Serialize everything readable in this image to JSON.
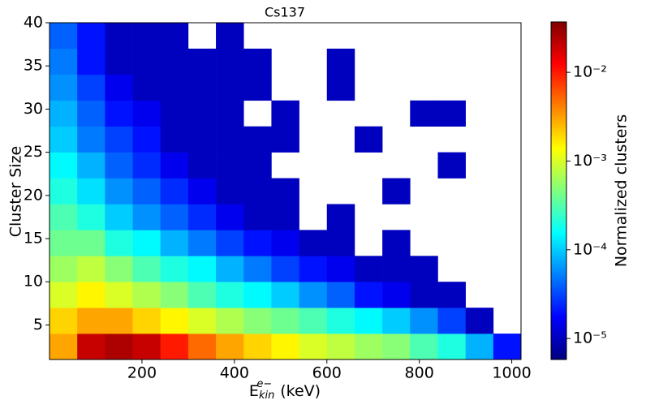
{
  "chart_data": {
    "type": "heatmap",
    "title": "Cs137",
    "ylabel": "Cluster Size",
    "xlabel": {
      "base": "E",
      "sub": "kin",
      "sup": "e−",
      "unit": "(keV)"
    },
    "colorbar_label": "Normalized clusters",
    "colormap": "jet",
    "color_scale": "log",
    "xlim": [
      0,
      1020
    ],
    "ylim": [
      1,
      40
    ],
    "clim": [
      5.8e-06,
      0.037
    ],
    "xticks": [
      200,
      400,
      600,
      800,
      1000
    ],
    "yticks": [
      5,
      10,
      15,
      20,
      25,
      30,
      35,
      40
    ],
    "cticks": [
      {
        "value": 0.01,
        "label": "10⁻²"
      },
      {
        "value": 0.001,
        "label": "10⁻³"
      },
      {
        "value": 0.0001,
        "label": "10⁻⁴"
      },
      {
        "value": 1e-05,
        "label": "10⁻⁵"
      }
    ],
    "xbins": [
      0,
      60,
      120,
      180,
      240,
      300,
      360,
      420,
      480,
      540,
      600,
      660,
      720,
      780,
      840,
      900,
      960,
      1020
    ],
    "ybins": [
      1,
      4,
      7,
      10,
      13,
      16,
      19,
      22,
      25,
      28,
      31,
      34,
      37,
      40
    ],
    "z": [
      [
        0.003,
        0.02,
        0.025,
        0.02,
        0.01,
        0.005,
        0.003,
        0.002,
        0.0015,
        0.001,
        0.0008,
        0.0006,
        0.0005,
        0.0003,
        0.0002,
        8e-05,
        2e-05
      ],
      [
        0.002,
        0.003,
        0.003,
        0.002,
        0.0015,
        0.001,
        0.0007,
        0.0005,
        0.0004,
        0.0003,
        0.0002,
        0.00015,
        0.0001,
        6e-05,
        3e-05,
        1e-05,
        null
      ],
      [
        0.001,
        0.0015,
        0.001,
        0.0007,
        0.0005,
        0.0003,
        0.0002,
        0.00015,
        0.0001,
        6e-05,
        4e-05,
        2e-05,
        1.5e-05,
        1e-05,
        1e-05,
        null,
        null
      ],
      [
        0.0006,
        0.0008,
        0.0005,
        0.0003,
        0.0002,
        0.00015,
        8e-05,
        5e-05,
        3e-05,
        2e-05,
        1.5e-05,
        1e-05,
        1e-05,
        1e-05,
        null,
        null,
        null
      ],
      [
        0.0004,
        0.0004,
        0.0002,
        0.00015,
        8e-05,
        5e-05,
        3e-05,
        2e-05,
        1.5e-05,
        1e-05,
        1e-05,
        null,
        1e-05,
        null,
        null,
        null,
        null
      ],
      [
        0.0003,
        0.0002,
        0.0001,
        6e-05,
        4e-05,
        2.5e-05,
        1.5e-05,
        1e-05,
        1e-05,
        null,
        1e-05,
        null,
        null,
        null,
        null,
        null,
        null
      ],
      [
        0.0002,
        0.00012,
        6e-05,
        4e-05,
        2.5e-05,
        1.5e-05,
        1e-05,
        1e-05,
        1e-05,
        null,
        null,
        null,
        1e-05,
        null,
        null,
        null,
        null
      ],
      [
        0.00015,
        8e-05,
        4e-05,
        2.5e-05,
        1.5e-05,
        1e-05,
        1e-05,
        1e-05,
        null,
        null,
        null,
        null,
        null,
        null,
        1e-05,
        null,
        null
      ],
      [
        0.0001,
        5e-05,
        3e-05,
        2e-05,
        1e-05,
        1e-05,
        1e-05,
        1e-05,
        1e-05,
        null,
        null,
        1e-05,
        null,
        null,
        null,
        null,
        null
      ],
      [
        8e-05,
        4e-05,
        2e-05,
        1.5e-05,
        1e-05,
        1e-05,
        1e-05,
        null,
        1e-05,
        null,
        null,
        null,
        null,
        1e-05,
        1e-05,
        null,
        null
      ],
      [
        6e-05,
        3e-05,
        1.5e-05,
        1e-05,
        1e-05,
        1e-05,
        1e-05,
        1e-05,
        null,
        null,
        1e-05,
        null,
        null,
        null,
        null,
        null,
        null
      ],
      [
        5e-05,
        2e-05,
        1e-05,
        1e-05,
        1e-05,
        1e-05,
        1e-05,
        1e-05,
        null,
        null,
        1e-05,
        null,
        null,
        null,
        null,
        null,
        null
      ],
      [
        4e-05,
        2e-05,
        1e-05,
        1e-05,
        1e-05,
        null,
        1e-05,
        null,
        null,
        null,
        null,
        null,
        null,
        null,
        null,
        null,
        null
      ]
    ]
  }
}
